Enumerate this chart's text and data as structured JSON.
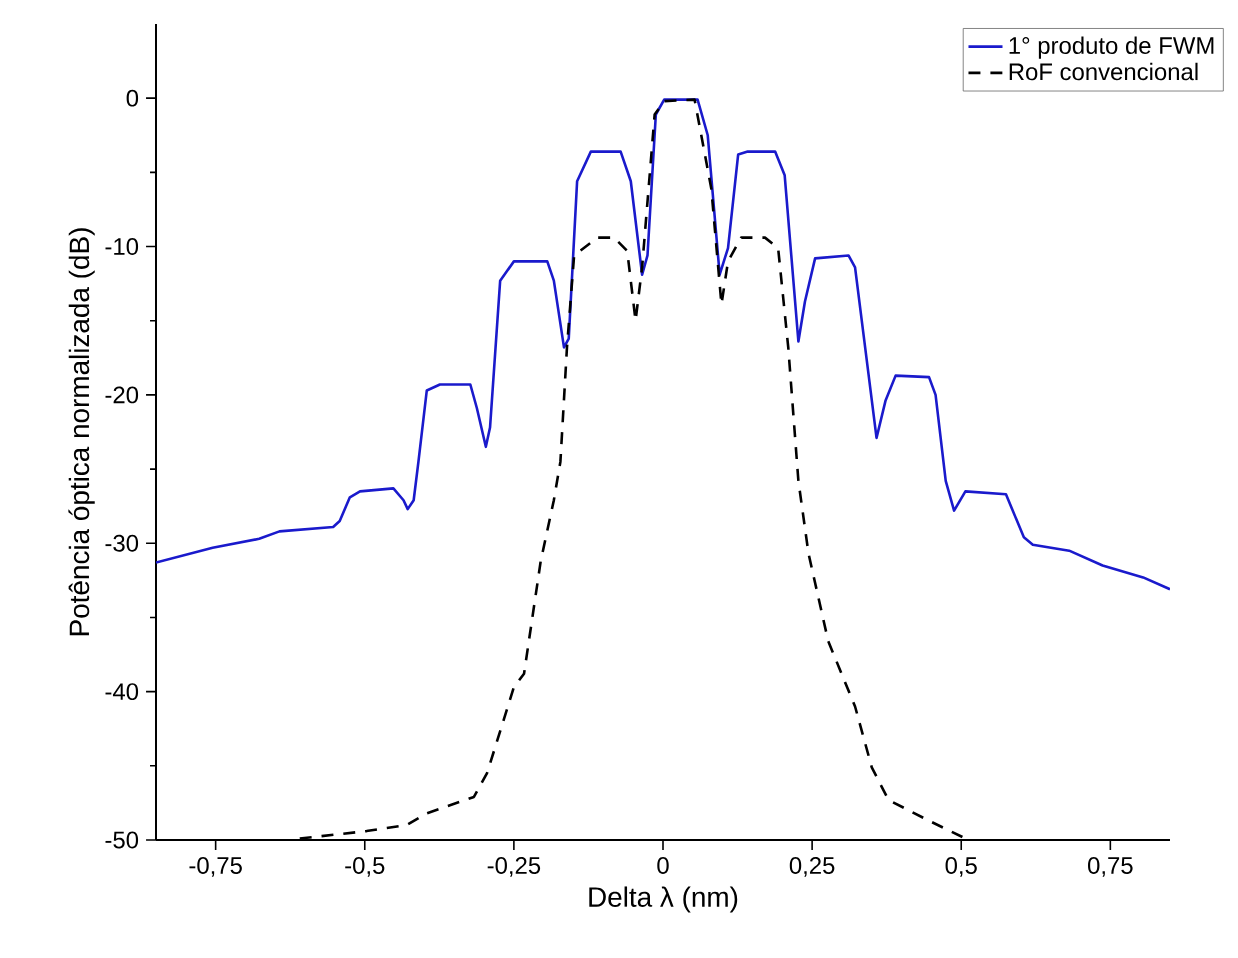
{
  "chart_data": {
    "type": "line",
    "xlabel": "Delta λ (nm)",
    "ylabel": "Potência óptica normalizada (dB)",
    "xlim": [
      -0.85,
      0.85
    ],
    "ylim": [
      -50,
      5
    ],
    "xticks": [
      {
        "value": -0.75,
        "label": "-0,75"
      },
      {
        "value": -0.5,
        "label": "-0,5"
      },
      {
        "value": -0.25,
        "label": "-0,25"
      },
      0,
      {
        "value": 0.25,
        "label": "0,25"
      },
      {
        "value": 0.5,
        "label": "0,5"
      },
      {
        "value": 0.75,
        "label": "0,75"
      }
    ],
    "yticks": [
      -50,
      -40,
      -30,
      -20,
      -10,
      0
    ],
    "grid": false,
    "legend": "top right",
    "series": [
      {
        "name": "1° produto de FWM",
        "color": "#1a1acc",
        "line_style": "solid",
        "x": [
          -0.85,
          -0.755,
          -0.677,
          -0.643,
          -0.553,
          -0.542,
          -0.525,
          -0.508,
          -0.452,
          -0.435,
          -0.428,
          -0.418,
          -0.41,
          -0.396,
          -0.374,
          -0.323,
          -0.312,
          -0.297,
          -0.29,
          -0.273,
          -0.25,
          -0.194,
          -0.183,
          -0.166,
          -0.158,
          -0.144,
          -0.121,
          -0.071,
          -0.054,
          -0.035,
          -0.026,
          -0.012,
          0.002,
          0.058,
          0.075,
          0.095,
          0.109,
          0.126,
          0.142,
          0.188,
          0.204,
          0.227,
          0.238,
          0.255,
          0.311,
          0.322,
          0.358,
          0.373,
          0.39,
          0.446,
          0.457,
          0.474,
          0.488,
          0.507,
          0.575,
          0.605,
          0.62,
          0.681,
          0.737,
          0.805,
          0.85
        ],
        "values": [
          -31.3,
          -30.3,
          -29.7,
          -29.2,
          -28.9,
          -28.5,
          -26.9,
          -26.5,
          -26.3,
          -27.1,
          -27.7,
          -27.1,
          -24.5,
          -19.7,
          -19.3,
          -19.3,
          -20.9,
          -23.5,
          -22.2,
          -12.3,
          -11.0,
          -11.0,
          -12.3,
          -16.8,
          -16.2,
          -5.6,
          -3.6,
          -3.6,
          -5.6,
          -11.9,
          -10.6,
          -1.1,
          -0.1,
          -0.1,
          -2.5,
          -11.9,
          -10.1,
          -3.8,
          -3.6,
          -3.6,
          -5.2,
          -16.4,
          -13.7,
          -10.8,
          -10.6,
          -11.4,
          -22.9,
          -20.4,
          -18.7,
          -18.8,
          -20.0,
          -25.8,
          -27.8,
          -26.5,
          -26.7,
          -29.6,
          -30.1,
          -30.5,
          -31.5,
          -32.3,
          -33.1
        ]
      },
      {
        "name": "RoF convencional",
        "color": "#000000",
        "line_style": "dashed",
        "x": [
          -0.609,
          -0.497,
          -0.43,
          -0.396,
          -0.317,
          -0.295,
          -0.25,
          -0.233,
          -0.205,
          -0.183,
          -0.172,
          -0.161,
          -0.149,
          -0.11,
          -0.082,
          -0.06,
          -0.046,
          -0.035,
          -0.014,
          0.002,
          0.053,
          0.081,
          0.098,
          0.109,
          0.131,
          0.171,
          0.193,
          0.21,
          0.227,
          0.244,
          0.277,
          0.322,
          0.35,
          0.378,
          0.446,
          0.502
        ],
        "values": [
          -49.9,
          -49.4,
          -49.0,
          -48.2,
          -47.1,
          -45.5,
          -39.7,
          -38.8,
          -31.2,
          -27.1,
          -24.5,
          -16.8,
          -10.6,
          -9.4,
          -9.4,
          -10.3,
          -15.0,
          -11.4,
          -1.1,
          -0.2,
          -0.1,
          -6.1,
          -13.9,
          -11.0,
          -9.4,
          -9.4,
          -10.1,
          -16.8,
          -25.8,
          -30.7,
          -36.6,
          -41.0,
          -45.1,
          -47.3,
          -48.7,
          -49.8
        ]
      }
    ]
  }
}
